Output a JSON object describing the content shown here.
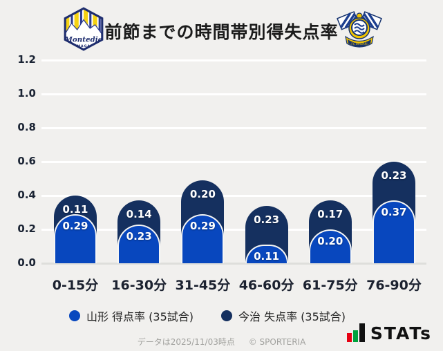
{
  "header": {
    "title": "前節までの時間帯別得失点率",
    "left_logo_name": "Montedio Yamagata",
    "left_logo_text": "Montedio",
    "left_logo_subtext": "YAMAGATA",
    "right_logo_name": "FC Imabari",
    "right_logo_banner": "FC IMABARI"
  },
  "chart_data": {
    "type": "bar",
    "stacked": true,
    "title": "前節までの時間帯別得失点率",
    "categories": [
      "0-15分",
      "16-30分",
      "31-45分",
      "46-60分",
      "61-75分",
      "76-90分"
    ],
    "series": [
      {
        "name": "山形 得点率 (35試合)",
        "color": "#0847be",
        "position": "bottom",
        "values": [
          0.29,
          0.23,
          0.29,
          0.11,
          0.2,
          0.37
        ]
      },
      {
        "name": "今治 失点率 (35試合)",
        "color": "#15305f",
        "position": "top",
        "values": [
          0.11,
          0.14,
          0.2,
          0.23,
          0.17,
          0.23
        ]
      }
    ],
    "y_ticks": [
      0.0,
      0.2,
      0.4,
      0.6,
      0.8,
      1.0,
      1.2
    ],
    "ylim": [
      0,
      1.2
    ],
    "xlabel": "",
    "ylabel": "",
    "grid": true,
    "gridline_color": "#ffffff",
    "baseline_color": "#dededb",
    "background_color": "#f1f0ee",
    "legend_position": "bottom"
  },
  "footer": {
    "note": "データは2025/11/03時点",
    "copyright": "© SPORTERIA"
  },
  "branding": {
    "stats_label": "STATs"
  }
}
